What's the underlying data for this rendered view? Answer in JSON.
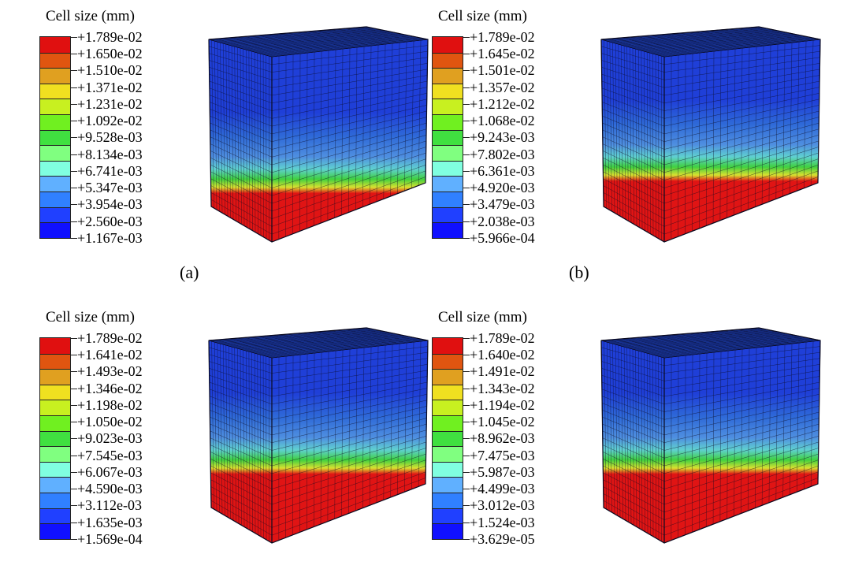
{
  "panels": [
    {
      "id": "a",
      "legend_title": "Cell size (mm)",
      "legend_values": [
        "+1.789e-02",
        "+1.650e-02",
        "+1.510e-02",
        "+1.371e-02",
        "+1.231e-02",
        "+1.092e-02",
        "+9.528e-03",
        "+8.134e-03",
        "+6.741e-03",
        "+5.347e-03",
        "+3.954e-03",
        "+2.560e-03",
        "+1.167e-03"
      ],
      "caption": "(a)"
    },
    {
      "id": "b",
      "legend_title": "Cell size (mm)",
      "legend_values": [
        "+1.789e-02",
        "+1.645e-02",
        "+1.501e-02",
        "+1.357e-02",
        "+1.212e-02",
        "+1.068e-02",
        "+9.243e-03",
        "+7.802e-03",
        "+6.361e-03",
        "+4.920e-03",
        "+3.479e-03",
        "+2.038e-03",
        "+5.966e-04"
      ],
      "caption": "(b)"
    },
    {
      "id": "c",
      "legend_title": "Cell size (mm)",
      "legend_values": [
        "+1.789e-02",
        "+1.641e-02",
        "+1.493e-02",
        "+1.346e-02",
        "+1.198e-02",
        "+1.050e-02",
        "+9.023e-03",
        "+7.545e-03",
        "+6.067e-03",
        "+4.590e-03",
        "+3.112e-03",
        "+1.635e-03",
        "+1.569e-04"
      ],
      "caption": ""
    },
    {
      "id": "d",
      "legend_title": "Cell size (mm)",
      "legend_values": [
        "+1.789e-02",
        "+1.640e-02",
        "+1.491e-02",
        "+1.343e-02",
        "+1.194e-02",
        "+1.045e-02",
        "+8.962e-03",
        "+7.475e-03",
        "+5.987e-03",
        "+4.499e-03",
        "+3.012e-03",
        "+1.524e-03",
        "+3.629e-05"
      ],
      "caption": ""
    }
  ],
  "colors": {
    "legend_bands": [
      "#e01010",
      "#e05510",
      "#e0a020",
      "#f0e020",
      "#c8f020",
      "#70f020",
      "#40e040",
      "#80ff80",
      "#80ffe0",
      "#60b0ff",
      "#3080ff",
      "#2040ff",
      "#1010ff"
    ],
    "cube_top": "#1a3aa8",
    "cube_blue_dark": "#1f3fd8",
    "cube_blue_mid": "#2f6ad8",
    "cube_blue_light": "#4f8fe0",
    "cube_cyan": "#5fd0d0",
    "cube_green": "#40d040",
    "cube_yellow": "#d8e030",
    "cube_red": "#e01414",
    "mesh_line": "#0a0a20"
  }
}
